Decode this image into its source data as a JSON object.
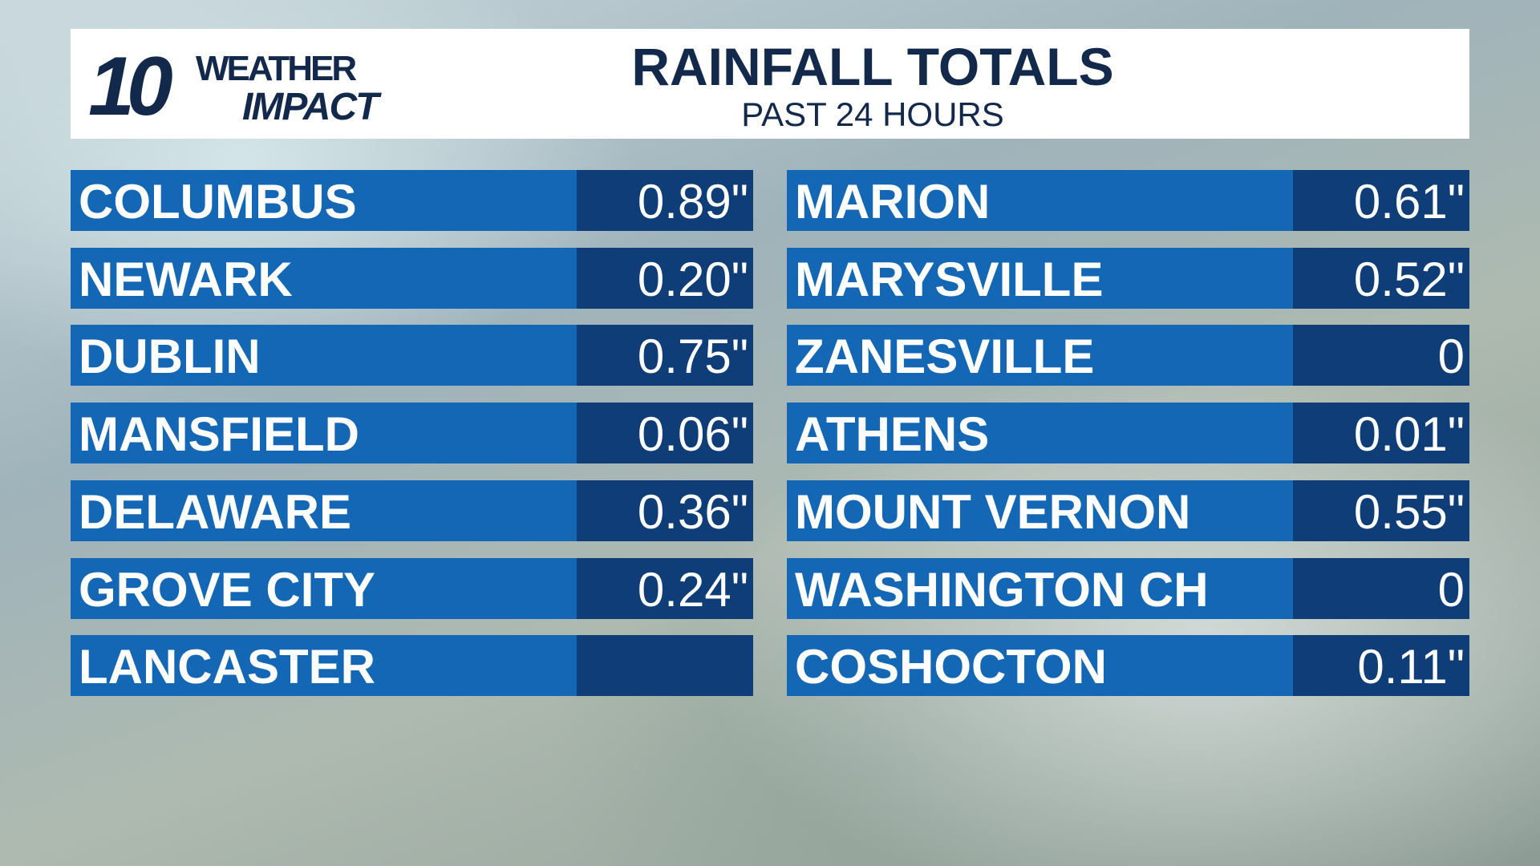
{
  "logo": {
    "number": "10",
    "line1": "WEATHER",
    "line2": "IMPACT"
  },
  "header": {
    "title": "RAINFALL TOTALS",
    "subtitle": "PAST 24 HOURS"
  },
  "columns": [
    {
      "rows": [
        {
          "city": "COLUMBUS",
          "total": "0.89\""
        },
        {
          "city": "NEWARK",
          "total": "0.20\""
        },
        {
          "city": "DUBLIN",
          "total": "0.75\""
        },
        {
          "city": "MANSFIELD",
          "total": "0.06\""
        },
        {
          "city": "DELAWARE",
          "total": "0.36\""
        },
        {
          "city": "GROVE CITY",
          "total": "0.24\""
        },
        {
          "city": "LANCASTER",
          "total": null
        }
      ]
    },
    {
      "rows": [
        {
          "city": "MARION",
          "total": "0.61\""
        },
        {
          "city": "MARYSVILLE",
          "total": "0.52\""
        },
        {
          "city": "ZANESVILLE",
          "total": "0"
        },
        {
          "city": "ATHENS",
          "total": "0.01\""
        },
        {
          "city": "MOUNT VERNON",
          "total": "0.55\""
        },
        {
          "city": "WASHINGTON CH",
          "total": "0"
        },
        {
          "city": "COSHOCTON",
          "total": "0.11\""
        }
      ]
    }
  ]
}
